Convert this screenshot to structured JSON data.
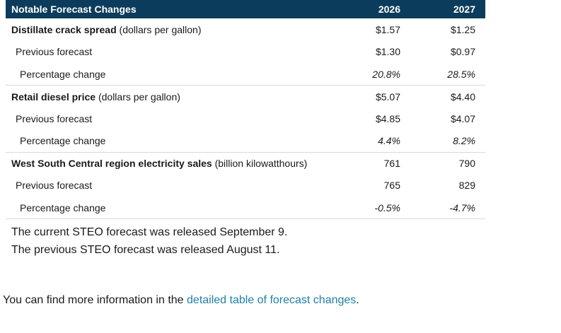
{
  "table": {
    "header": {
      "title": "Notable Forecast Changes",
      "col1": "2026",
      "col2": "2027"
    },
    "groups": [
      {
        "metric": "Distillate crack spread",
        "unit": "(dollars per gallon)",
        "current": [
          "$1.57",
          "$1.25"
        ],
        "previous_label": "Previous forecast",
        "previous": [
          "$1.30",
          "$0.97"
        ],
        "change_label": "Percentage change",
        "change": [
          "20.8%",
          "28.5%"
        ]
      },
      {
        "metric": "Retail diesel price",
        "unit": "(dollars per gallon)",
        "current": [
          "$5.07",
          "$4.40"
        ],
        "previous_label": "Previous forecast",
        "previous": [
          "$4.85",
          "$4.07"
        ],
        "change_label": "Percentage change",
        "change": [
          "4.4%",
          "8.2%"
        ]
      },
      {
        "metric": "West South Central region electricity sales",
        "unit": "(billion kilowatthours)",
        "current": [
          "761",
          "790"
        ],
        "previous_label": "Previous forecast",
        "previous": [
          "765",
          "829"
        ],
        "change_label": "Percentage change",
        "change": [
          "-0.5%",
          "-4.7%"
        ]
      }
    ]
  },
  "notes": {
    "current_release": "The current STEO forecast was released September 9.",
    "previous_release": "The previous STEO forecast was released August 11."
  },
  "more_info": {
    "prefix": "You can find more information in the ",
    "link_text": "detailed table of forecast changes",
    "suffix": "."
  }
}
